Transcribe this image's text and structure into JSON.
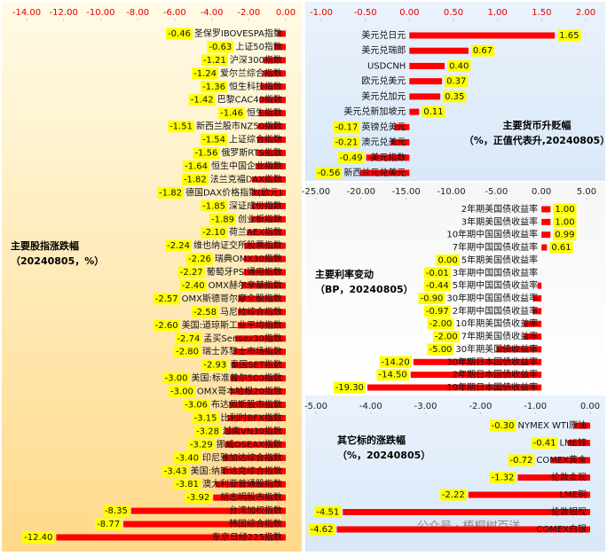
{
  "chart_data": [
    {
      "type": "bar",
      "orientation": "horizontal",
      "title": "主要股指涨跌幅",
      "subtitle": "（20240805，%）",
      "color": "#ff0000",
      "categories": [
        "圣保罗IBOVESPA指数",
        "上证50指数",
        "沪深300指数",
        "爱尔兰综合指数",
        "恒生科技指数",
        "巴黎CAC40指数",
        "恒生指数",
        "新西兰股市NZ50指数",
        "上证综合指数",
        "俄罗斯RTS指数",
        "恒生中国企业指数",
        "法兰克福DAX指数",
        "德国DAX价格指数(欧元)",
        "深证成份指数",
        "创业板指数",
        "荷兰AEX指数",
        "维也纳证交所股票指数",
        "瑞典OMX30指数",
        "葡萄牙PSI通用指数",
        "OMX赫尔辛基指数",
        "OMX斯德哥尔摩全股指数",
        "马尼拉综合指数",
        "美国:道琼斯工业平均指数",
        "孟买Sensex30指数",
        "瑞士苏黎士市场指数",
        "泰国SET指数",
        "美国:标准普尔500指数",
        "OMX哥本哈根20指数",
        "布达佩斯股市指数",
        "比利时BFX指数",
        "越南VN30指数",
        "挪威OSEAX指数",
        "印尼雅加达综合指数",
        "美国:纳斯达克综合指数",
        "澳大利亚普通股指数",
        "胡志明股市指数",
        "台湾加权指数",
        "韩国综合指数",
        "东京日经225指数"
      ],
      "values": [
        -0.46,
        -0.63,
        -1.21,
        -1.24,
        -1.36,
        -1.42,
        -1.46,
        -1.51,
        -1.54,
        -1.56,
        -1.64,
        -1.82,
        -1.82,
        -1.85,
        -1.89,
        -2.1,
        -2.24,
        -2.26,
        -2.27,
        -2.4,
        -2.57,
        -2.58,
        -2.6,
        -2.74,
        -2.8,
        -2.93,
        -3,
        -3,
        -3.06,
        -3.15,
        -3.28,
        -3.29,
        -3.4,
        -3.43,
        -3.81,
        -3.92,
        -8.35,
        -8.77,
        -12.4
      ],
      "value_labels": [
        "-0.46",
        "-0.63",
        "-1.21",
        "-1.24",
        "-1.36",
        "-1.42",
        "-1.46",
        "-1.51",
        "-1.54",
        "-1.56",
        "-1.64",
        "-1.82",
        "-1.82",
        "-1.85",
        "-1.89",
        "-2.10",
        "-2.24",
        "-2.26",
        "-2.27",
        "-2.40",
        "-2.57",
        "-2.58",
        "-2.60",
        "-2.74",
        "-2.80",
        "-2.93",
        "-3.00",
        "-3.00",
        "-3.06",
        "-3.15",
        "-3.28",
        "-3.29",
        "-3.40",
        "-3.43",
        "-3.81",
        "-3.92",
        "-8.35",
        "-8.77",
        "-12.40"
      ],
      "xlim": [
        -14,
        0
      ],
      "xticks": [
        {
          "value": -14,
          "label": "-14.00"
        },
        {
          "value": -12,
          "label": "-12.00"
        },
        {
          "value": -10,
          "label": "-10.00"
        },
        {
          "value": -8,
          "label": "-8.00"
        },
        {
          "value": -6,
          "label": "-6.00"
        },
        {
          "value": -4,
          "label": "-4.00"
        },
        {
          "value": -2,
          "label": "-2.00"
        },
        {
          "value": 0,
          "label": "0.00"
        }
      ]
    },
    {
      "type": "bar",
      "orientation": "horizontal",
      "title": "主要货币升贬幅",
      "subtitle": "（%，正值代表升,20240805）",
      "color": "#ff0000",
      "categories": [
        "美元兑日元",
        "美元兑瑞郎",
        "USDCNH",
        "欧元兑美元",
        "美元兑加元",
        "美元兑新加坡元",
        "英镑兑美元",
        "澳元兑美元",
        "美元指数",
        "新西兰元兑美元"
      ],
      "values": [
        1.65,
        0.67,
        0.4,
        0.37,
        0.35,
        0.11,
        -0.17,
        -0.21,
        -0.49,
        -0.56
      ],
      "value_labels": [
        "1.65",
        "0.67",
        "0.40",
        "0.37",
        "0.35",
        "0.11",
        "-0.17",
        "-0.21",
        "-0.49",
        "-0.56"
      ],
      "xlim": [
        -1,
        2
      ],
      "xticks": [
        {
          "value": -1,
          "label": "-1.00"
        },
        {
          "value": -0.5,
          "label": "-0.50"
        },
        {
          "value": 0,
          "label": "0.00"
        },
        {
          "value": 0.5,
          "label": "0.50"
        },
        {
          "value": 1,
          "label": "1.00"
        },
        {
          "value": 1.5,
          "label": "1.50"
        },
        {
          "value": 2,
          "label": "2.00"
        }
      ]
    },
    {
      "type": "bar",
      "orientation": "horizontal",
      "title": "主要利率变动",
      "subtitle": "（BP，20240805）",
      "color": "#ff0000",
      "categories": [
        "2年期美国债收益率",
        "3年期美国债收益率",
        "10年期中国国债收益率",
        "7年期中国国债收益率",
        "5年期美国债收益率",
        "3年期中国国债收益率",
        "5年期中国国债收益率",
        "30年期中国国债收益率",
        "2年期中国国债收益率",
        "10年期美国债收益率",
        "7年期美国债收益率",
        "30年期美国债收益率",
        "30年期日本国债收益率",
        "2年期日本国债收益率",
        "10年期日本国债收益率"
      ],
      "values": [
        1,
        1,
        0.99,
        0.61,
        0,
        -0.01,
        -0.44,
        -0.9,
        -0.97,
        -2,
        -2,
        -5,
        -14.2,
        -14.5,
        -19.3
      ],
      "value_labels": [
        "1.00",
        "1.00",
        "0.99",
        "0.61",
        "0.00",
        "-0.01",
        "-0.44",
        "-0.90",
        "-0.97",
        "-2.00",
        "-2.00",
        "-5.00",
        "-14.20",
        "-14.50",
        "-19.30"
      ],
      "xlim": [
        -25,
        5
      ],
      "xticks": [
        {
          "value": -25,
          "label": "-25.00"
        },
        {
          "value": -20,
          "label": "-20.00"
        },
        {
          "value": -15,
          "label": "-15.00"
        },
        {
          "value": -10,
          "label": "-10.00"
        },
        {
          "value": -5,
          "label": "-5.00"
        },
        {
          "value": 0,
          "label": "0.00"
        },
        {
          "value": 5,
          "label": "5.00"
        }
      ]
    },
    {
      "type": "bar",
      "orientation": "horizontal",
      "title": "其它标的涨跌幅",
      "subtitle": "（%，20240805）",
      "color": "#ff0000",
      "categories": [
        "NYMEX WTI原油",
        "LME锌",
        "COMEX黄金",
        "伦敦金现",
        "LME铜",
        "伦敦银现",
        "COMEX白银"
      ],
      "values": [
        -0.3,
        -0.41,
        -0.72,
        -1.32,
        -2.22,
        -4.51,
        -4.62
      ],
      "value_labels": [
        "-0.30",
        "-0.41",
        "-0.72",
        "-1.32",
        "-2.22",
        "-4.51",
        "-4.62"
      ],
      "xlim": [
        -5,
        0
      ],
      "xticks": [
        {
          "value": -5,
          "label": "-5.00"
        },
        {
          "value": -4,
          "label": "-4.00"
        },
        {
          "value": -3,
          "label": "-3.00"
        },
        {
          "value": -2,
          "label": "-2.00"
        },
        {
          "value": -1,
          "label": "-1.00"
        },
        {
          "value": 0,
          "label": "0.00"
        }
      ]
    }
  ],
  "watermark": "公众号 · 梧桐树百洋"
}
